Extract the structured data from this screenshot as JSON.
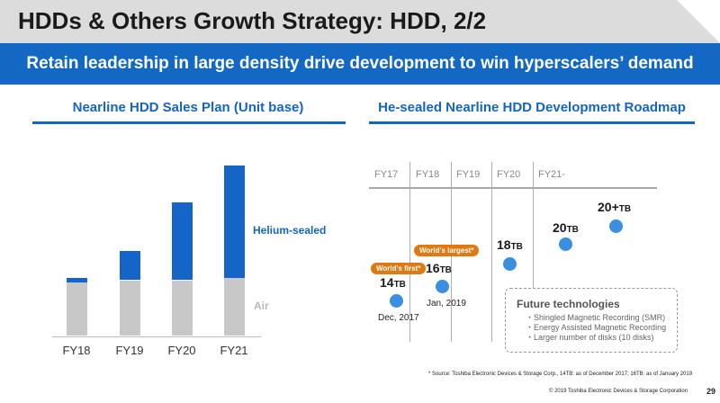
{
  "page": {
    "title": "HDDs & Others Growth Strategy: HDD, 2/2",
    "subtitle": "Retain leadership in large density drive development to win hyperscalers’ demand",
    "page_number": "29",
    "footnote": "* Source: Toshiba Electronic Devices & Storage Corp., 14TB: as of December 2017; 16TB: as of January 2019",
    "copyright": "© 2019 Toshiba Electronic Devices & Storage Corporation"
  },
  "sales_plan": {
    "heading": "Nearline HDD Sales Plan (Unit base)",
    "legend": {
      "helium": "Helium-sealed",
      "air": "Air"
    }
  },
  "roadmap": {
    "heading": "He-sealed Nearline HDD Development Roadmap",
    "years": [
      "FY17",
      "FY18",
      "FY19",
      "FY20",
      "FY21-"
    ],
    "milestones": [
      {
        "capacity": "14",
        "unit": "TB",
        "date": "Dec, 2017",
        "badge": "World's first*"
      },
      {
        "capacity": "16",
        "unit": "TB",
        "date": "Jan, 2019",
        "badge": "World's largest*"
      },
      {
        "capacity": "18",
        "unit": "TB"
      },
      {
        "capacity": "20",
        "unit": "TB"
      },
      {
        "capacity": "20+",
        "unit": "TB"
      }
    ],
    "future": {
      "title": "Future technologies",
      "items": [
        "・Shingled Magnetic Recording (SMR)",
        "・Energy Assisted Magnetic Recording",
        "・Larger number of disks (10 disks)"
      ]
    }
  },
  "chart_data": {
    "type": "bar",
    "stacked": true,
    "categories": [
      "FY18",
      "FY19",
      "FY20",
      "FY21"
    ],
    "series": [
      {
        "name": "Air",
        "values": [
          58,
          60,
          60,
          62
        ],
        "color": "#c8c8c8"
      },
      {
        "name": "Helium-sealed",
        "values": [
          4,
          32,
          84,
          122
        ],
        "color": "#1565c8"
      }
    ],
    "ylim": [
      0,
      200
    ],
    "grid": false,
    "legend": "right"
  }
}
